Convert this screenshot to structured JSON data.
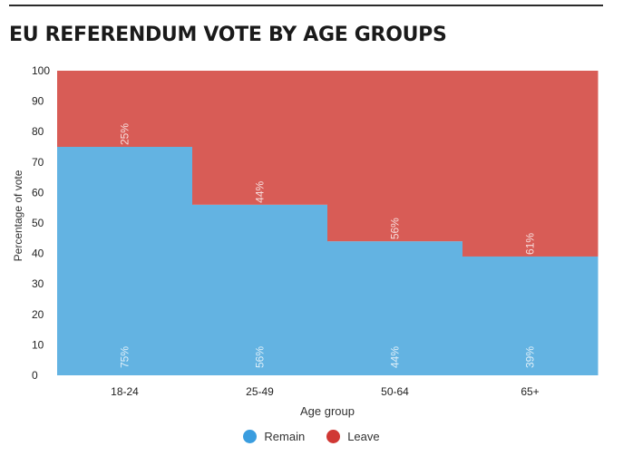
{
  "chart_data": {
    "type": "bar",
    "stacked": true,
    "title": "EU REFERENDUM VOTE BY AGE GROUPS",
    "xlabel": "Age group",
    "ylabel": "Percentage of vote",
    "ylim": [
      0,
      100
    ],
    "yticks": [
      0,
      10,
      20,
      30,
      40,
      50,
      60,
      70,
      80,
      90,
      100
    ],
    "categories": [
      "18-24",
      "25-49",
      "50-64",
      "65+"
    ],
    "series": [
      {
        "name": "Remain",
        "color": "#63b3e2",
        "values": [
          75,
          56,
          44,
          39
        ],
        "labels": [
          "75%",
          "56%",
          "44%",
          "39%"
        ]
      },
      {
        "name": "Leave",
        "color": "#d85c56",
        "values": [
          25,
          44,
          56,
          61
        ],
        "labels": [
          "25%",
          "44%",
          "56%",
          "61%"
        ]
      }
    ],
    "legend_position": "bottom-center",
    "grid": false
  },
  "legend": {
    "remain_label": "Remain",
    "leave_label": "Leave",
    "remain_color": "#3a9ddf",
    "leave_color": "#d03834"
  }
}
